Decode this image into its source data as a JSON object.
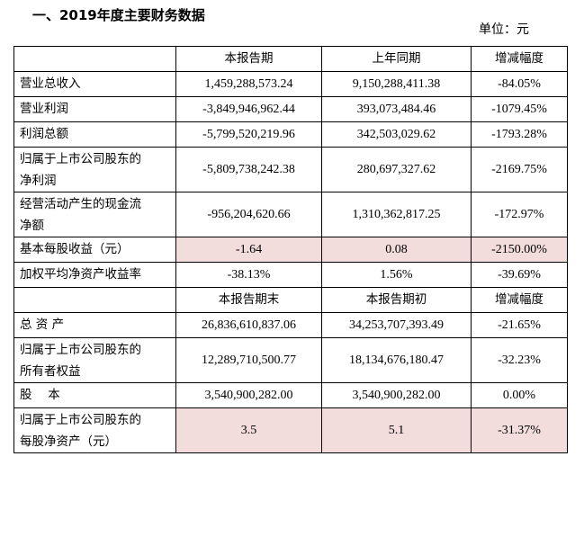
{
  "title": "一、2019年度主要财务数据",
  "unit_label": "单位：元",
  "headers1": [
    "",
    "本报告期",
    "上年同期",
    "增减幅度"
  ],
  "rows1": [
    {
      "label": [
        "营业总收入"
      ],
      "current": "1,459,288,573.24",
      "prior": "9,150,288,411.38",
      "change": "-84.05%",
      "highlight": false
    },
    {
      "label": [
        "营业利润"
      ],
      "current": "-3,849,946,962.44",
      "prior": "393,073,484.46",
      "change": "-1079.45%",
      "highlight": false
    },
    {
      "label": [
        "利润总额"
      ],
      "current": "-5,799,520,219.96",
      "prior": "342,503,029.62",
      "change": "-1793.28%",
      "highlight": false
    },
    {
      "label": [
        "归属于上市公司股东的",
        "净利润"
      ],
      "current": "-5,809,738,242.38",
      "prior": "280,697,327.62",
      "change": "-2169.75%",
      "highlight": false
    },
    {
      "label": [
        "经营活动产生的现金流",
        "净额"
      ],
      "current": "-956,204,620.66",
      "prior": "1,310,362,817.25",
      "change": "-172.97%",
      "highlight": false
    },
    {
      "label": [
        "基本每股收益（元）"
      ],
      "current": "-1.64",
      "prior": "0.08",
      "change": "-2150.00%",
      "highlight": true
    },
    {
      "label": [
        "加权平均净资产收益率"
      ],
      "current": "-38.13%",
      "prior": "1.56%",
      "change": "-39.69%",
      "highlight": false
    }
  ],
  "headers2": [
    "",
    "本报告期末",
    "本报告期初",
    "增减幅度"
  ],
  "rows2": [
    {
      "label": [
        "总 资 产"
      ],
      "current": "26,836,610,837.06",
      "prior": "34,253,707,393.49",
      "change": "-21.65%",
      "highlight": false
    },
    {
      "label": [
        "归属于上市公司股东的",
        "所有者权益"
      ],
      "current": "12,289,710,500.77",
      "prior": "18,134,676,180.47",
      "change": "-32.23%",
      "highlight": false
    },
    {
      "label": [
        "股　 本"
      ],
      "current": "3,540,900,282.00",
      "prior": "3,540,900,282.00",
      "change": "0.00%",
      "highlight": false
    },
    {
      "label": [
        "归属于上市公司股东的",
        "每股净资产（元）"
      ],
      "current": "3.5",
      "prior": "5.1",
      "change": "-31.37%",
      "highlight": true
    }
  ]
}
